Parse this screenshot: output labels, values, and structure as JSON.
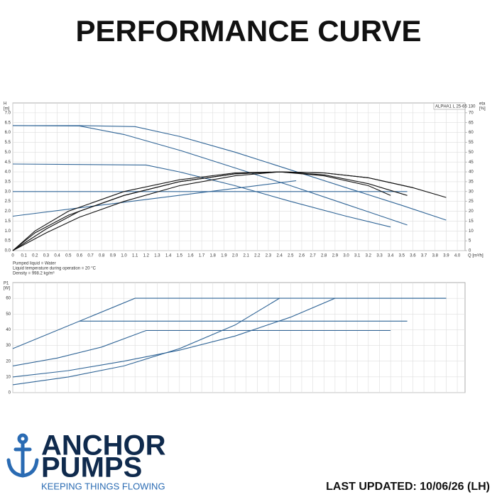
{
  "title": "PERFORMANCE CURVE",
  "chart_data": [
    {
      "type": "line",
      "label": "ALPHA1 L 25-65  130",
      "ylabel": [
        "H",
        "[m]"
      ],
      "xlabel": "Q [m³/h]",
      "y2label": [
        "eta",
        "[%]"
      ],
      "xlim": [
        0,
        4.07
      ],
      "ylim": [
        0,
        7.5
      ],
      "y2lim": [
        0,
        75
      ],
      "grid": true,
      "xticks": [
        0,
        0.1,
        0.2,
        0.3,
        0.4,
        0.5,
        0.6,
        0.7,
        0.8,
        0.9,
        {
          "value": 1,
          "label": "1.0"
        },
        1.1,
        1.2,
        1.3,
        1.4,
        1.5,
        1.6,
        1.7,
        1.8,
        1.9,
        {
          "value": 2,
          "label": "2.0"
        },
        2.1,
        2.2,
        2.3,
        2.4,
        2.5,
        2.6,
        2.7,
        2.8,
        2.9,
        {
          "value": 3,
          "label": "3.0"
        },
        3.1,
        3.2,
        3.3,
        3.4,
        3.5,
        3.6,
        3.7,
        3.8,
        3.9,
        {
          "value": 4,
          "label": "4.0"
        }
      ],
      "yticks": [
        {
          "value": 0,
          "label": "0.0"
        },
        0.5,
        {
          "value": 1,
          "label": "1.0"
        },
        1.5,
        {
          "value": 2,
          "label": "2.0"
        },
        2.5,
        {
          "value": 3,
          "label": "3.0"
        },
        3.5,
        {
          "value": 4,
          "label": "4.0"
        },
        4.5,
        {
          "value": 5,
          "label": "5.0"
        },
        5.5,
        {
          "value": 6,
          "label": "6.0"
        },
        6.5,
        {
          "value": 7,
          "label": "7.0"
        }
      ],
      "y2ticks": [
        0,
        5,
        10,
        15,
        20,
        25,
        30,
        35,
        40,
        45,
        50,
        55,
        60,
        65,
        70
      ],
      "series": [
        {
          "color": "#2f6496",
          "x": [
            0,
            0.6,
            1.1,
            1.5,
            2.0,
            2.5,
            3.0,
            3.5,
            3.9
          ],
          "values": [
            6.35,
            6.35,
            6.3,
            5.8,
            5.0,
            4.1,
            3.2,
            2.3,
            1.55
          ]
        },
        {
          "color": "#2f6496",
          "x": [
            0,
            0.6,
            1.0,
            1.5,
            2.0,
            2.5,
            3.0,
            3.55
          ],
          "values": [
            6.35,
            6.33,
            5.9,
            5.1,
            4.2,
            3.3,
            2.35,
            1.3
          ]
        },
        {
          "color": "#2f6496",
          "x": [
            0,
            1.2,
            1.5,
            2.0,
            2.5,
            3.0,
            3.4
          ],
          "values": [
            4.4,
            4.35,
            4.0,
            3.3,
            2.5,
            1.75,
            1.2
          ]
        },
        {
          "color": "#2f6496",
          "x": [
            0,
            3.55
          ],
          "values": [
            3.0,
            3.0
          ]
        },
        {
          "color": "#2f6496",
          "x": [
            0,
            2.55
          ],
          "values": [
            1.75,
            3.55
          ]
        },
        {
          "color": "#111111",
          "axis": "y2",
          "x": [
            0,
            0.2,
            0.5,
            1.0,
            1.5,
            2.0,
            2.4,
            2.8,
            3.2,
            3.4
          ],
          "values": [
            0,
            10,
            20,
            30,
            36,
            39.5,
            40,
            38,
            33,
            28
          ]
        },
        {
          "color": "#111111",
          "axis": "y2",
          "x": [
            0,
            0.2,
            0.5,
            1.0,
            1.5,
            2.0,
            2.4,
            2.8,
            3.2,
            3.55
          ],
          "values": [
            0,
            9,
            18,
            28,
            35,
            39,
            40,
            38.5,
            34,
            28
          ]
        },
        {
          "color": "#111111",
          "axis": "y2",
          "x": [
            0,
            0.3,
            0.6,
            1.0,
            1.5,
            2.0,
            2.4,
            2.8,
            3.2,
            3.6,
            3.9
          ],
          "values": [
            0,
            11,
            20,
            28,
            35,
            39,
            40,
            39.5,
            37,
            32,
            27
          ]
        },
        {
          "color": "#111111",
          "axis": "y2",
          "x": [
            0,
            0.3,
            0.6,
            1.0,
            1.5,
            2.0,
            2.4,
            2.8,
            3.2,
            3.6
          ],
          "values": [
            0,
            9,
            17,
            25,
            33,
            38,
            40,
            39.5,
            37,
            32
          ]
        }
      ]
    },
    {
      "type": "line",
      "ylabel": [
        "P1",
        "[W]"
      ],
      "xlim": [
        0,
        4.07
      ],
      "ylim": [
        0,
        70
      ],
      "grid": true,
      "yticks": [
        0,
        10,
        20,
        30,
        40,
        50,
        60
      ],
      "series": [
        {
          "color": "#2f6496",
          "x": [
            0,
            1.1,
            3.9
          ],
          "values": [
            28,
            60,
            60
          ]
        },
        {
          "color": "#2f6496",
          "x": [
            0.6,
            3.55
          ],
          "values": [
            45.5,
            45.5
          ]
        },
        {
          "color": "#2f6496",
          "x": [
            0,
            0.4,
            0.8,
            1.2,
            3.4
          ],
          "values": [
            17,
            22,
            29,
            39.5,
            39.5
          ]
        },
        {
          "color": "#2f6496",
          "x": [
            0,
            0.5,
            1.0,
            1.5,
            2.0,
            2.5,
            2.9,
            3.9
          ],
          "values": [
            10,
            14,
            20,
            27,
            36,
            48,
            60,
            60
          ]
        },
        {
          "color": "#2f6496",
          "x": [
            0,
            0.5,
            1.0,
            1.5,
            2.0,
            2.4
          ],
          "values": [
            5,
            10,
            17,
            28,
            43,
            60
          ]
        }
      ]
    }
  ],
  "notes": [
    "Pumped liquid = Water",
    "Liquid temperature during operation = 20 °C",
    "Density = 998.2 kg/m³"
  ],
  "logo": {
    "line1": "ANCHOR",
    "line2": "PUMPS",
    "tagline": "KEEPING THINGS FLOWING"
  },
  "footer": "LAST UPDATED: 10/06/26 (LH)"
}
